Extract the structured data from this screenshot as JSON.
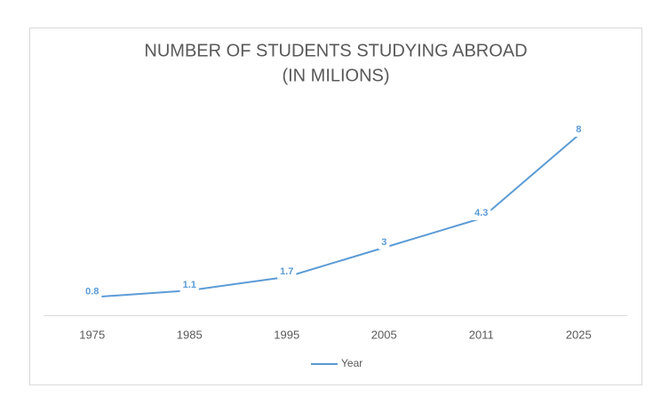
{
  "chart_data": {
    "type": "line",
    "title": [
      "NUMBER OF STUDENTS STUDYING ABROAD",
      "(IN MILIONS)"
    ],
    "categories": [
      "1975",
      "1985",
      "1995",
      "2005",
      "2011",
      "2025"
    ],
    "series": [
      {
        "name": "Year",
        "color": "#5b9bd5",
        "values": [
          0.8,
          1.1,
          1.7,
          3,
          4.3,
          8
        ]
      }
    ],
    "legend": "bottom"
  }
}
